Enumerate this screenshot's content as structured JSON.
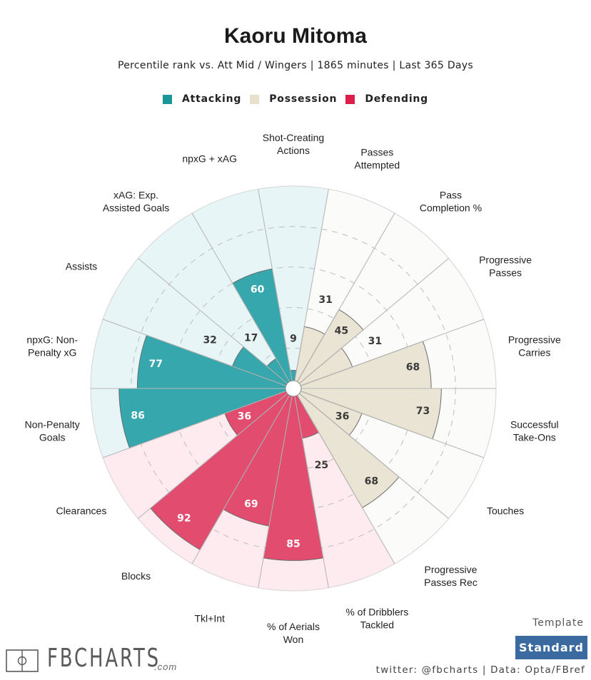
{
  "header": {
    "title": "Kaoru Mitoma",
    "subtitle": "Percentile rank vs. Att Mid / Wingers | 1865 minutes | Last 365 Days"
  },
  "legend": [
    {
      "label": "Attacking",
      "color": "#1a9698"
    },
    {
      "label": "Possession",
      "color": "#e6e0cc"
    },
    {
      "label": "Defending",
      "color": "#dc1f4a"
    }
  ],
  "colors": {
    "attacking_bar": "#2ea4aa",
    "attacking_bg": "#e8f5f6",
    "possession_bar": "#e8e3d3",
    "possession_bg": "#fbfbfa",
    "defending_bar": "#e0466a",
    "defending_bg": "#fdebef",
    "light_text": "#ffffff",
    "dark_text": "#3a3a3a"
  },
  "chart_data": {
    "type": "polar-bar",
    "title": "Kaoru Mitoma",
    "subtitle": "Percentile rank vs. Att Mid / Wingers | 1865 minutes | Last 365 Days",
    "rlim": [
      0,
      100
    ],
    "grid": true,
    "grid_rings": [
      20,
      40,
      60,
      80
    ],
    "legend_position": "top",
    "categories": [
      {
        "label": [
          "Shot-Creating",
          "Actions"
        ],
        "group": "Attacking",
        "value": 9
      },
      {
        "label": [
          "Passes",
          "Attempted"
        ],
        "group": "Possession",
        "value": 31
      },
      {
        "label": [
          "Pass",
          "Completion %"
        ],
        "group": "Possession",
        "value": 45
      },
      {
        "label": [
          "Progressive",
          "Passes"
        ],
        "group": "Possession",
        "value": 31
      },
      {
        "label": [
          "Progressive",
          "Carries"
        ],
        "group": "Possession",
        "value": 68
      },
      {
        "label": [
          "Successful",
          "Take-Ons"
        ],
        "group": "Possession",
        "value": 73
      },
      {
        "label": [
          "Touches"
        ],
        "group": "Possession",
        "value": 36
      },
      {
        "label": [
          "Progressive",
          "Passes Rec"
        ],
        "group": "Possession",
        "value": 68
      },
      {
        "label": [
          "% of Dribblers",
          "Tackled"
        ],
        "group": "Defending",
        "value": 25
      },
      {
        "label": [
          "% of Aerials",
          "Won"
        ],
        "group": "Defending",
        "value": 85
      },
      {
        "label": [
          "Tkl+Int"
        ],
        "group": "Defending",
        "value": 69
      },
      {
        "label": [
          "Blocks"
        ],
        "group": "Defending",
        "value": 92
      },
      {
        "label": [
          "Clearances"
        ],
        "group": "Defending",
        "value": 36
      },
      {
        "label": [
          "Non-Penalty",
          "Goals"
        ],
        "group": "Attacking",
        "value": 86
      },
      {
        "label": [
          "npxG: Non-",
          "Penalty xG"
        ],
        "group": "Attacking",
        "value": 77
      },
      {
        "label": [
          "Assists"
        ],
        "group": "Attacking",
        "value": 32
      },
      {
        "label": [
          "xAG: Exp.",
          "Assisted Goals"
        ],
        "group": "Attacking",
        "value": 17
      },
      {
        "label": [
          "npxG + xAG"
        ],
        "group": "Attacking",
        "value": 60
      }
    ]
  },
  "footer": {
    "logo_text": "FBCHARTS",
    "logo_suffix": ".com",
    "template_label": "Template",
    "template_button": "Standard",
    "credit": "twitter: @fbcharts | Data: Opta/FBref"
  }
}
